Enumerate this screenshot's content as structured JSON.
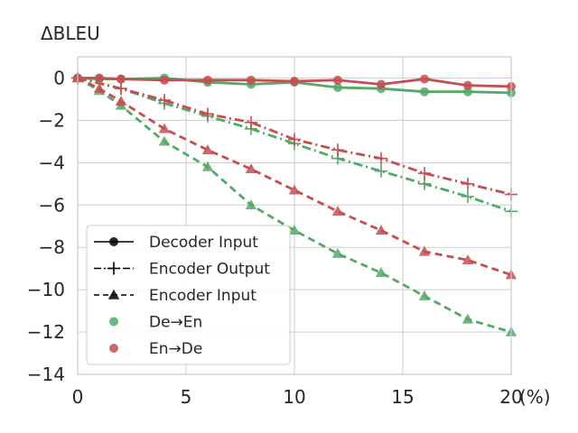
{
  "chart_data": {
    "type": "line",
    "ylabel": "ΔBLEU",
    "xunit": "(%)",
    "xlim": [
      0,
      20
    ],
    "ylim": [
      -14,
      1
    ],
    "xticks": [
      0,
      5,
      10,
      15,
      20
    ],
    "yticks": [
      0,
      -2,
      -4,
      -6,
      -8,
      -10,
      -12,
      -14
    ],
    "grid": true,
    "legend_position": "lower-left",
    "colors": {
      "de_en": "#55a868",
      "en_de": "#c44e52"
    },
    "legend": [
      {
        "label": "Decoder Input",
        "kind": "line-marker",
        "dash": "solid",
        "marker": "circle"
      },
      {
        "label": "Encoder Output",
        "kind": "line-marker",
        "dash": "dashdot",
        "marker": "plus"
      },
      {
        "label": "Encoder Input",
        "kind": "line-marker",
        "dash": "dashed",
        "marker": "triangle"
      },
      {
        "label": "De→En",
        "kind": "scatter",
        "color": "de_en"
      },
      {
        "label": "En→De",
        "kind": "scatter",
        "color": "en_de"
      }
    ],
    "series": [
      {
        "pair": "De→En",
        "setting": "Decoder Input",
        "color": "de_en",
        "dash": "solid",
        "marker": "circle",
        "x": [
          0,
          1,
          2,
          4,
          6,
          8,
          10,
          12,
          14,
          16,
          18,
          20
        ],
        "y": [
          0,
          -0.05,
          -0.05,
          0,
          -0.2,
          -0.3,
          -0.2,
          -0.45,
          -0.5,
          -0.65,
          -0.65,
          -0.7
        ]
      },
      {
        "pair": "En→De",
        "setting": "Decoder Input",
        "color": "en_de",
        "dash": "solid",
        "marker": "circle",
        "x": [
          0,
          1,
          2,
          4,
          6,
          8,
          10,
          12,
          14,
          16,
          18,
          20
        ],
        "y": [
          0,
          0,
          -0.05,
          -0.1,
          -0.1,
          -0.1,
          -0.15,
          -0.1,
          -0.3,
          -0.05,
          -0.35,
          -0.4
        ]
      },
      {
        "pair": "De→En",
        "setting": "Encoder Output",
        "color": "de_en",
        "dash": "dashdot",
        "marker": "plus",
        "x": [
          0,
          2,
          4,
          6,
          8,
          10,
          12,
          14,
          16,
          18,
          20
        ],
        "y": [
          0,
          -0.5,
          -1.2,
          -1.8,
          -2.4,
          -3.1,
          -3.8,
          -4.4,
          -5.0,
          -5.6,
          -6.3
        ]
      },
      {
        "pair": "En→De",
        "setting": "Encoder Output",
        "color": "en_de",
        "dash": "dashdot",
        "marker": "plus",
        "x": [
          0,
          2,
          4,
          6,
          8,
          10,
          12,
          14,
          16,
          18,
          20
        ],
        "y": [
          0,
          -0.5,
          -1.05,
          -1.7,
          -2.1,
          -2.9,
          -3.4,
          -3.8,
          -4.5,
          -5.0,
          -5.5
        ]
      },
      {
        "pair": "De→En",
        "setting": "Encoder Input",
        "color": "de_en",
        "dash": "dashed",
        "marker": "triangle",
        "x": [
          0,
          1,
          2,
          4,
          6,
          8,
          10,
          12,
          14,
          16,
          18,
          20
        ],
        "y": [
          0,
          -0.6,
          -1.3,
          -3.0,
          -4.2,
          -6.0,
          -7.2,
          -8.3,
          -9.2,
          -10.3,
          -11.4,
          -12.0
        ]
      },
      {
        "pair": "En→De",
        "setting": "Encoder Input",
        "color": "en_de",
        "dash": "dashed",
        "marker": "triangle",
        "x": [
          0,
          1,
          2,
          4,
          6,
          8,
          10,
          12,
          14,
          16,
          18,
          20
        ],
        "y": [
          0,
          -0.5,
          -1.1,
          -2.4,
          -3.4,
          -4.3,
          -5.3,
          -6.3,
          -7.2,
          -8.2,
          -8.6,
          -9.3
        ]
      }
    ]
  }
}
